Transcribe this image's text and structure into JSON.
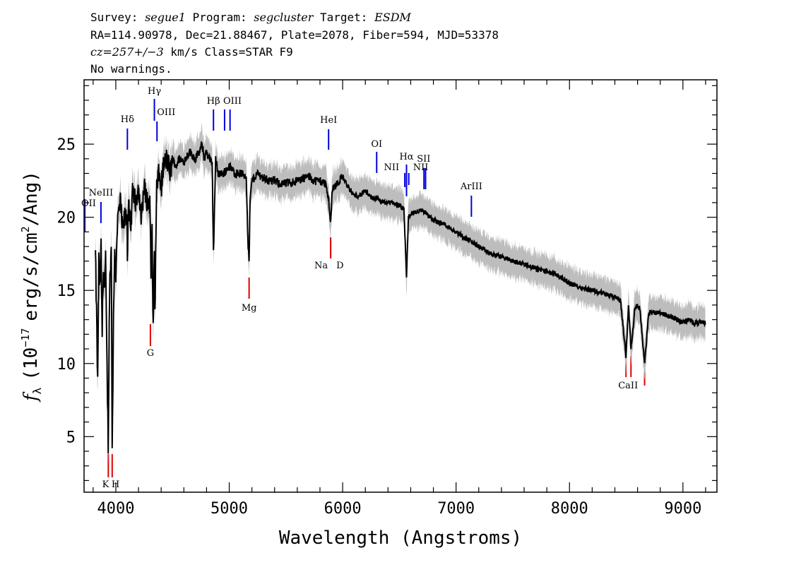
{
  "header": {
    "line1": {
      "survey_label": "Survey:",
      "survey": "segue1",
      "program_label": "Program:",
      "program": "segcluster",
      "target_label": "Target:",
      "target": "ESDM"
    },
    "line2": "RA=114.90978, Dec=21.88467, Plate=2078, Fiber=594, MJD=53378",
    "line3": {
      "z": "cz=257+/−3",
      "rest": "km/s Class=STAR F9"
    },
    "line4": "No warnings."
  },
  "colors": {
    "spectrum": "#000000",
    "error_band": "#bdbdbd",
    "emission_line": "#0000dd",
    "absorption_line": "#dd0000"
  },
  "chart_data": {
    "type": "line",
    "xlabel": "Wavelength (Angstroms)",
    "ylabel": {
      "f": "f",
      "sub": "λ",
      "mid": "(10",
      "sup": "−17",
      "unit": "erg/s/cm",
      "sup2": "2",
      "end": "/Ang)"
    },
    "xlim": [
      3720,
      9300
    ],
    "ylim": [
      1.2,
      29.4
    ],
    "xticks": [
      4000,
      5000,
      6000,
      7000,
      8000,
      9000
    ],
    "yticks": [
      5,
      10,
      15,
      20,
      25
    ],
    "grid": false,
    "series": [
      {
        "x": [
          3820,
          3830,
          3840,
          3850,
          3860,
          3870,
          3880,
          3890,
          3900,
          3910,
          3920,
          3933,
          3945,
          3960,
          3968,
          3980,
          3990,
          4000,
          4010,
          4020,
          4040,
          4060,
          4080,
          4100,
          4102,
          4110,
          4130,
          4150,
          4170,
          4200,
          4220,
          4250,
          4280,
          4300,
          4310,
          4320,
          4330,
          4340,
          4345,
          4360,
          4380,
          4400,
          4420,
          4450,
          4480,
          4500,
          4530,
          4560,
          4600,
          4650,
          4700,
          4740,
          4760,
          4780,
          4800,
          4830,
          4850,
          4861,
          4880,
          4900,
          4950,
          5000,
          5050,
          5100,
          5150,
          5167,
          5175,
          5183,
          5200,
          5250,
          5300,
          5350,
          5400,
          5450,
          5500,
          5600,
          5700,
          5750,
          5800,
          5850,
          5880,
          5893,
          5910,
          5950,
          6000,
          6050,
          6100,
          6150,
          6200,
          6250,
          6300,
          6350,
          6400,
          6450,
          6500,
          6540,
          6563,
          6580,
          6620,
          6700,
          6800,
          6900,
          7000,
          7100,
          7200,
          7300,
          7400,
          7500,
          7600,
          7700,
          7800,
          7900,
          8000,
          8100,
          8200,
          8300,
          8400,
          8450,
          8498,
          8520,
          8542,
          8580,
          8620,
          8662,
          8700,
          8750,
          8800,
          8850,
          8900,
          8950,
          9000,
          9050,
          9100,
          9150,
          9200
        ],
        "values": [
          17.5,
          13.5,
          8.5,
          17,
          15,
          18,
          12,
          17,
          15,
          17,
          11,
          4.5,
          15,
          18,
          4.5,
          13,
          18,
          16,
          19,
          20,
          21,
          19,
          20,
          20,
          17,
          21,
          19,
          22,
          21,
          22,
          20,
          22,
          21,
          21,
          16,
          19,
          12,
          18,
          13.5,
          22,
          23,
          22,
          23.5,
          24,
          23,
          24,
          23.5,
          24,
          23.8,
          24.5,
          24,
          24.5,
          25,
          24,
          24.5,
          24,
          23.5,
          17.5,
          24,
          23,
          23,
          23.5,
          23,
          23,
          22.8,
          18,
          17,
          21,
          22.5,
          23,
          22.7,
          22.5,
          22.5,
          22.3,
          22.3,
          22.5,
          22.8,
          22.5,
          22.5,
          22.3,
          21,
          19.5,
          22,
          22.3,
          22.8,
          22,
          21.5,
          21.5,
          21.8,
          21.3,
          21.3,
          21,
          21,
          21,
          20.8,
          20.5,
          16,
          20,
          20.3,
          20.5,
          19.8,
          19.5,
          19,
          18.5,
          18,
          17.5,
          17.3,
          17,
          16.8,
          16.5,
          16.3,
          16,
          15.5,
          15.2,
          15,
          14.8,
          14.5,
          14.3,
          10.5,
          14,
          11,
          14,
          13.8,
          10,
          13.5,
          13.5,
          13.5,
          13.3,
          13.2,
          13,
          12.8,
          13,
          12.8,
          12.8,
          12.8
        ]
      }
    ],
    "lines": [
      {
        "label": "OII",
        "wave": 3727,
        "kind": "emission"
      },
      {
        "label": "NeIII",
        "wave": 3869,
        "kind": "emission"
      },
      {
        "label": "Hδ",
        "wave": 4102,
        "kind": "emission"
      },
      {
        "label": "Hγ",
        "wave": 4340,
        "kind": "emission"
      },
      {
        "label": "OIII",
        "wave": 4363,
        "kind": "emission"
      },
      {
        "label": "Hβ",
        "wave": 4861,
        "kind": "emission"
      },
      {
        "label": "OIII",
        "wave": 4959,
        "kind": "emission"
      },
      {
        "label": "",
        "wave": 5007,
        "kind": "emission"
      },
      {
        "label": "HeI",
        "wave": 5876,
        "kind": "emission"
      },
      {
        "label": "OI",
        "wave": 6300,
        "kind": "emission"
      },
      {
        "label": "NII",
        "wave": 6548,
        "kind": "emission"
      },
      {
        "label": "Hα",
        "wave": 6563,
        "kind": "emission"
      },
      {
        "label": "NII",
        "wave": 6583,
        "kind": "emission"
      },
      {
        "label": "SII",
        "wave": 6717,
        "kind": "emission"
      },
      {
        "label": "",
        "wave": 6731,
        "kind": "emission"
      },
      {
        "label": "ArIII",
        "wave": 7135,
        "kind": "emission"
      },
      {
        "label": "K",
        "wave": 3934,
        "kind": "absorption"
      },
      {
        "label": "H",
        "wave": 3968,
        "kind": "absorption"
      },
      {
        "label": "G",
        "wave": 4305,
        "kind": "absorption"
      },
      {
        "label": "Mg",
        "wave": 5175,
        "kind": "absorption"
      },
      {
        "label": "Na",
        "wave": 5894,
        "kind": "absorption"
      },
      {
        "label": "D",
        "wave": 5894,
        "kind": "absorption"
      },
      {
        "label": "CaII",
        "wave": 8498,
        "kind": "absorption"
      },
      {
        "label": "",
        "wave": 8542,
        "kind": "absorption"
      },
      {
        "label": "",
        "wave": 8662,
        "kind": "absorption"
      }
    ]
  }
}
